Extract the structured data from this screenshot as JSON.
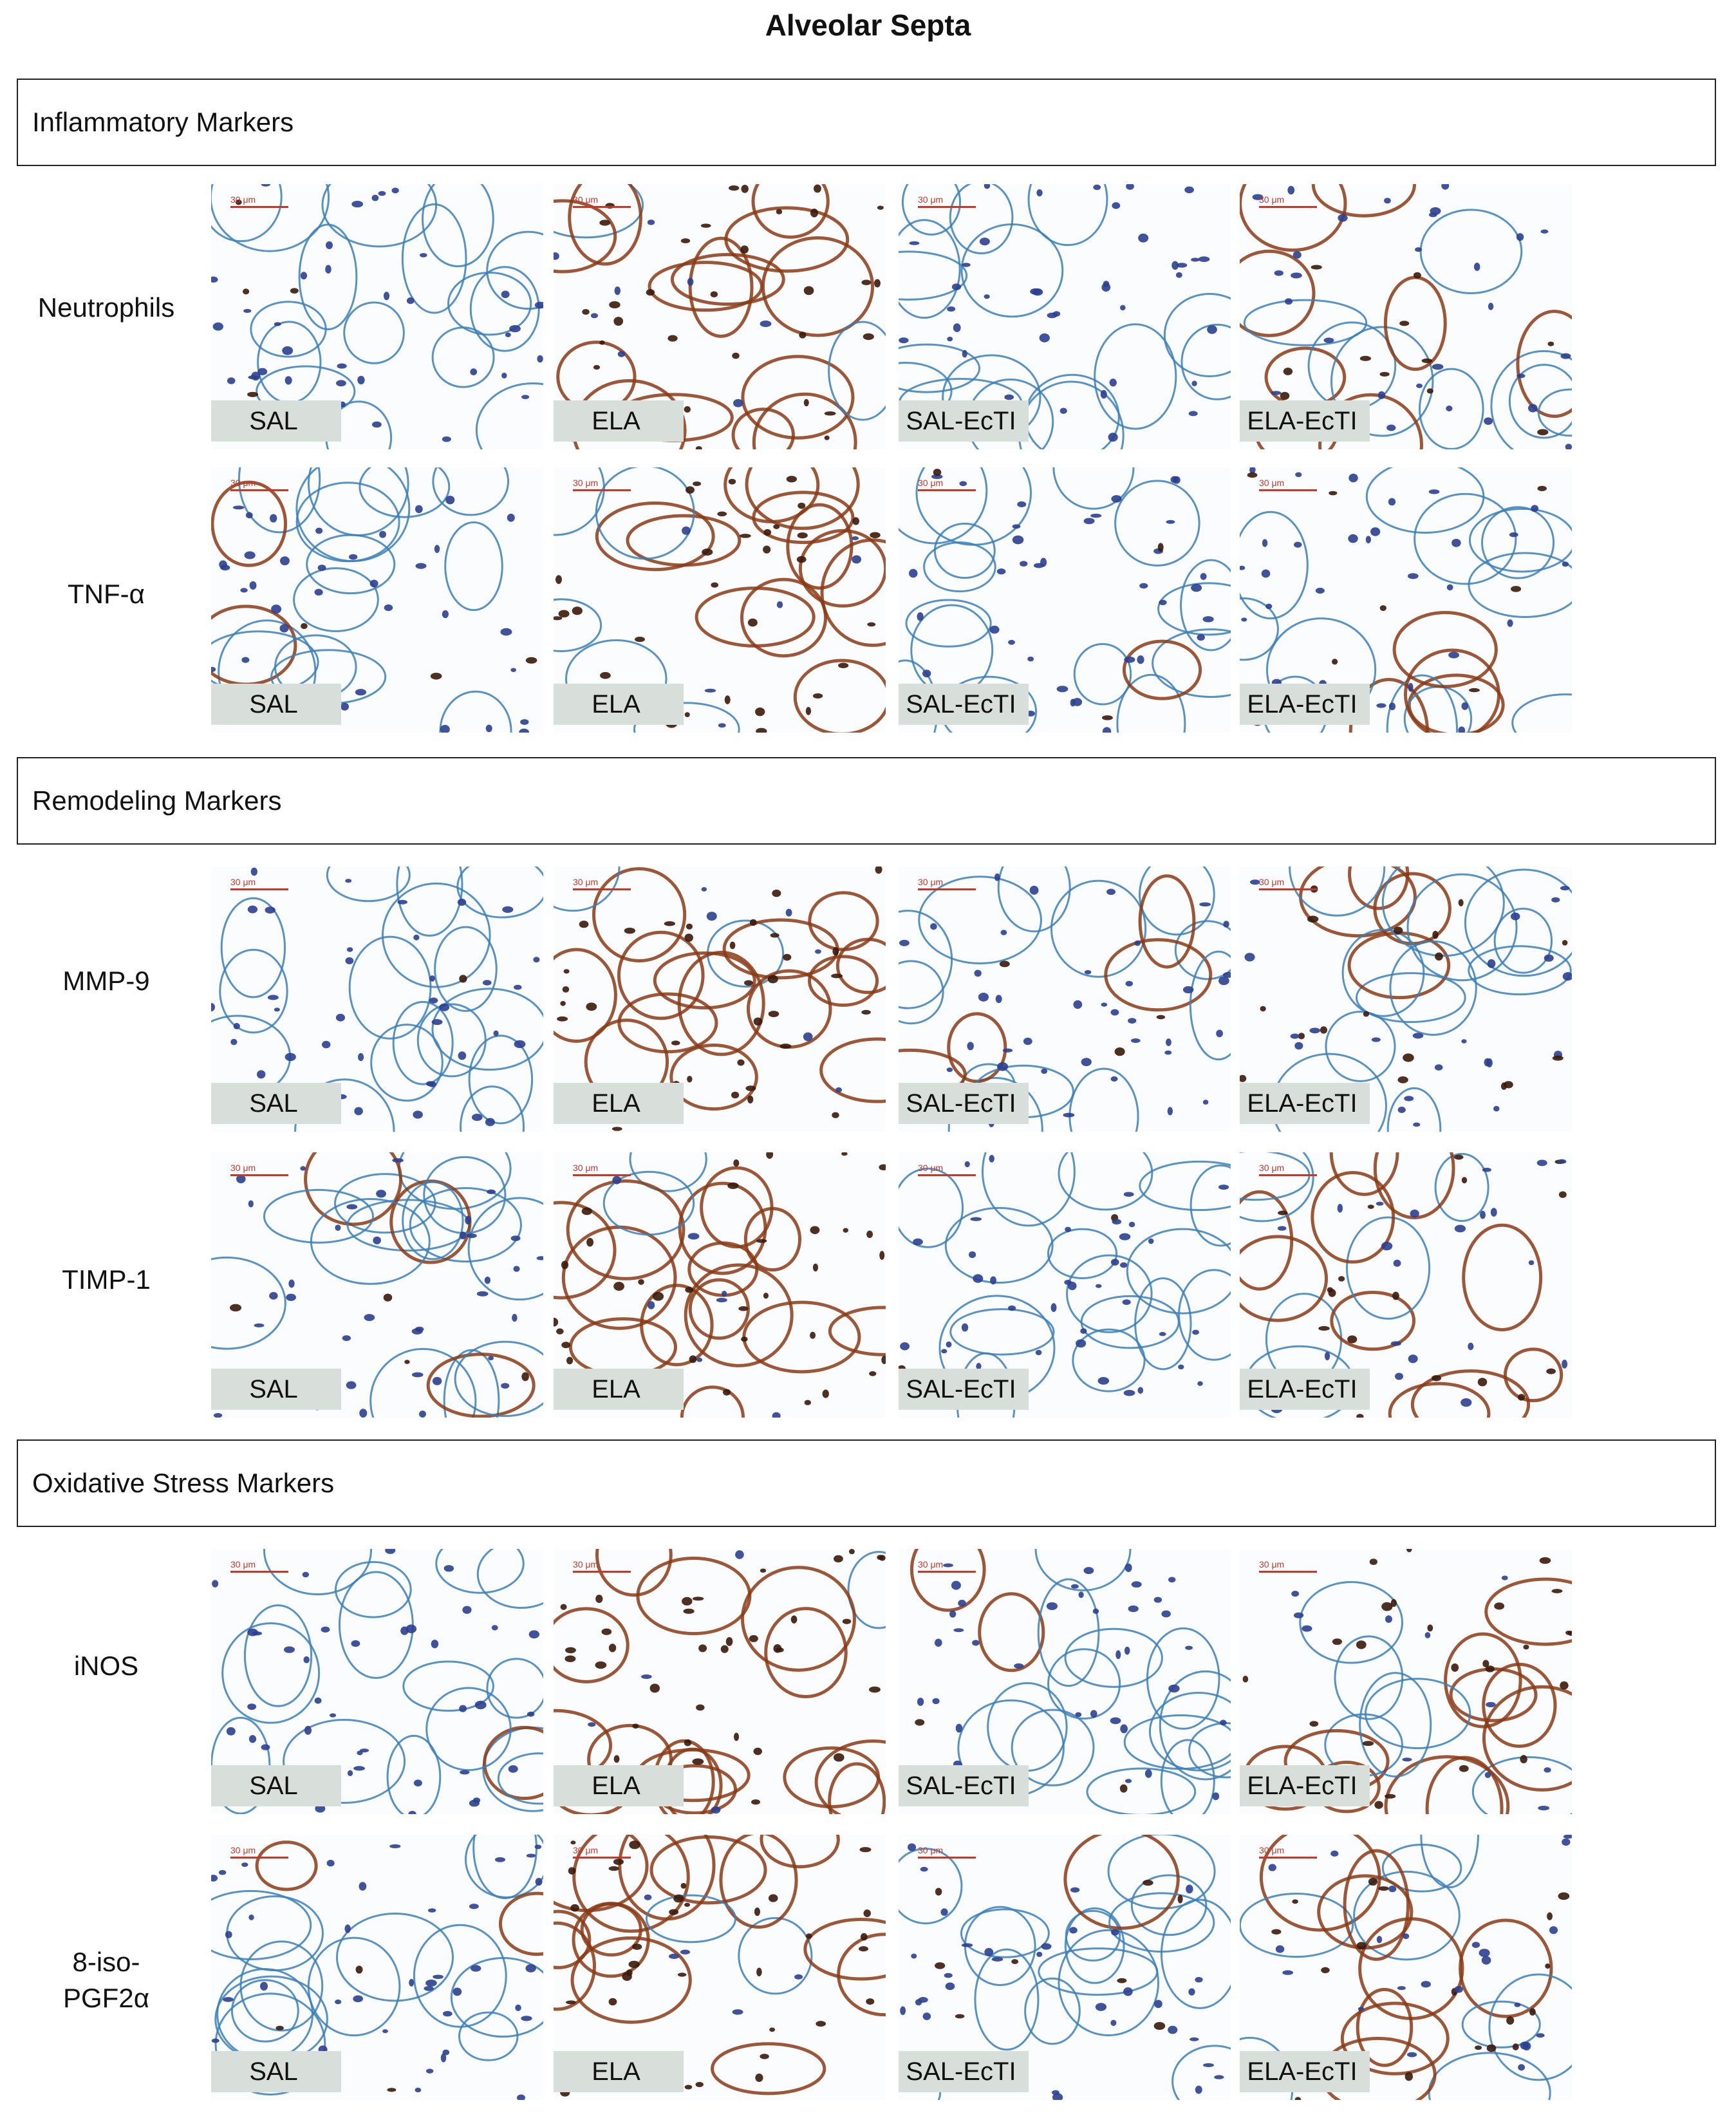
{
  "title": "Alveolar Septa",
  "sections": [
    {
      "label": "Inflammatory Markers"
    },
    {
      "label": "Remodeling Markers"
    },
    {
      "label": "Oxidative Stress Markers"
    }
  ],
  "rows": [
    {
      "label": "Neutrophils",
      "label2": ""
    },
    {
      "label": "TNF-α",
      "label2": ""
    },
    {
      "label": "MMP-9",
      "label2": ""
    },
    {
      "label": "TIMP-1",
      "label2": ""
    },
    {
      "label": "iNOS",
      "label2": ""
    },
    {
      "label": "8-iso-",
      "label2": "PGF2α"
    }
  ],
  "groups": [
    "SAL",
    "ELA",
    "SAL-EcTI",
    "ELA-EcTI"
  ],
  "scale_bar": "30 μm",
  "stain_colors": {
    "septa": "#3a7fb8",
    "nuclei": "#2b3f8f",
    "positive_brown": "#8a3a14",
    "background": "#fbfcfe"
  },
  "staining_level": [
    [
      0.05,
      0.85,
      0.05,
      0.35
    ],
    [
      0.05,
      0.9,
      0.05,
      0.25
    ],
    [
      0.1,
      0.8,
      0.1,
      0.45
    ],
    [
      0.1,
      0.9,
      0.1,
      0.5
    ],
    [
      0.05,
      0.85,
      0.05,
      0.55
    ],
    [
      0.05,
      0.85,
      0.1,
      0.45
    ]
  ]
}
